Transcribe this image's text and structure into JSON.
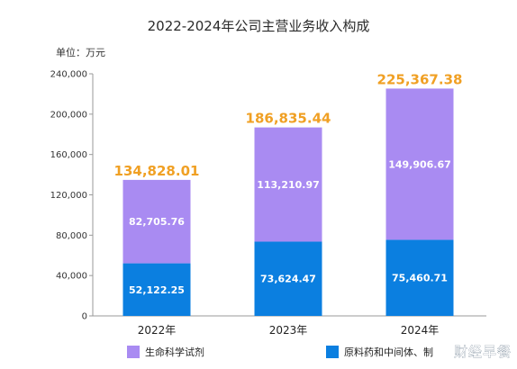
{
  "chart_data": {
    "type": "bar",
    "stacked": true,
    "title": "2022-2024年公司主营业务收入构成",
    "unit": "单位：万元",
    "categories": [
      "2022年",
      "2023年",
      "2024年"
    ],
    "series": [
      {
        "name": "原料药和中间体、制",
        "color": "#0b7fe0",
        "values": [
          52122.25,
          73624.47,
          75460.71
        ],
        "labels": [
          "52,122.25",
          "73,624.47",
          "75,460.71"
        ]
      },
      {
        "name": "生命科学试剂",
        "color": "#a98bf2",
        "values": [
          82705.76,
          113210.97,
          149906.67
        ],
        "labels": [
          "82,705.76",
          "113,210.97",
          "149,906.67"
        ]
      }
    ],
    "totals": [
      134828.01,
      186835.44,
      225367.38
    ],
    "total_labels": [
      "134,828.01",
      "186,835.44",
      "225,367.38"
    ],
    "total_label_color": "#f0a024",
    "ylim": [
      0,
      240000
    ],
    "yticks": [
      0,
      40000,
      80000,
      120000,
      160000,
      200000,
      240000
    ],
    "ytick_labels": [
      "0",
      "40,000",
      "80,000",
      "120,000",
      "160,000",
      "200,000",
      "240,000"
    ],
    "grid": false,
    "legend_position": "bottom"
  },
  "watermark": "财经早餐"
}
